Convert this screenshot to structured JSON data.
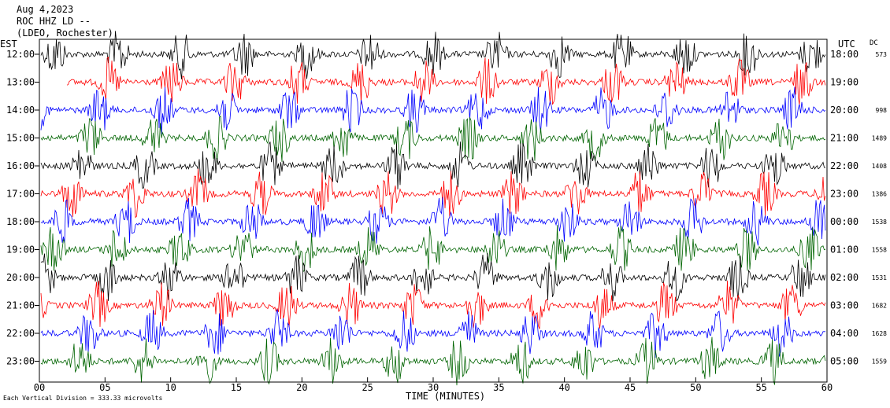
{
  "header": {
    "date": "Aug 4,2023",
    "station": "ROC HHZ LD --",
    "network": "(LDEO, Rochester)"
  },
  "left_axis_title": "EST",
  "right_axis_title": "UTC",
  "dc_title": "DC",
  "footer_note": "Each Vertical Division = 333.33 microvolts",
  "chart_data": {
    "type": "line",
    "subtype": "helicorder",
    "xlabel": "TIME (MINUTES)",
    "xlim": [
      0,
      60
    ],
    "x_ticks": [
      "00",
      "05",
      "10",
      "15",
      "20",
      "25",
      "30",
      "35",
      "40",
      "45",
      "50",
      "55",
      "60"
    ],
    "trace_colors": [
      "#000000",
      "#ff0000",
      "#0000ff",
      "#006400"
    ],
    "rows": [
      {
        "est": "12:00",
        "utc": "18:00",
        "dc": "573"
      },
      {
        "est": "13:00",
        "utc": "19:00",
        "dc": ""
      },
      {
        "est": "14:00",
        "utc": "20:00",
        "dc": "998"
      },
      {
        "est": "15:00",
        "utc": "21:00",
        "dc": "1489"
      },
      {
        "est": "16:00",
        "utc": "22:00",
        "dc": "1408"
      },
      {
        "est": "17:00",
        "utc": "23:00",
        "dc": "1386"
      },
      {
        "est": "18:00",
        "utc": "00:00",
        "dc": "1538"
      },
      {
        "est": "19:00",
        "utc": "01:00",
        "dc": "1558"
      },
      {
        "est": "20:00",
        "utc": "02:00",
        "dc": "1531"
      },
      {
        "est": "21:00",
        "utc": "03:00",
        "dc": "1682"
      },
      {
        "est": "22:00",
        "utc": "04:00",
        "dc": "1628"
      },
      {
        "est": "23:00",
        "utc": "05:00",
        "dc": "1559"
      }
    ],
    "grid": false
  }
}
